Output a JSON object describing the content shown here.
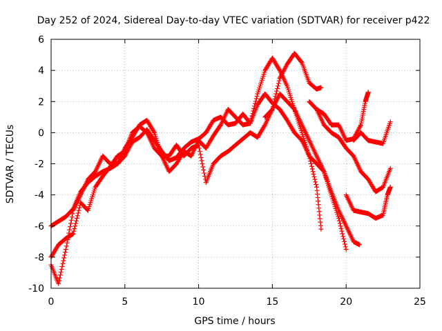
{
  "chart_data": {
    "type": "scatter",
    "title": "Day 252 of 2024, Sidereal Day-to-day VTEC variation (SDTVAR) for receiver p422",
    "xlabel": "GPS time / hours",
    "ylabel": "SDTVAR / TECUs",
    "xlim": [
      0,
      25
    ],
    "ylim": [
      -10,
      6
    ],
    "xticks": [
      0,
      5,
      10,
      15,
      20,
      25
    ],
    "yticks": [
      -10,
      -8,
      -6,
      -4,
      -2,
      0,
      2,
      4,
      6
    ],
    "grid": true,
    "marker": "+",
    "color": "#ff0000",
    "series": [
      {
        "points": [
          [
            0,
            -6.0
          ],
          [
            0.5,
            -5.7
          ],
          [
            1.0,
            -5.4
          ],
          [
            1.5,
            -4.9
          ],
          [
            2.0,
            -3.8
          ],
          [
            2.5,
            -3.2
          ],
          [
            3.0,
            -2.8
          ],
          [
            3.5,
            -2.5
          ],
          [
            4.0,
            -2.3
          ],
          [
            4.5,
            -2.0
          ],
          [
            5.0,
            -1.5
          ],
          [
            5.5,
            -0.6
          ],
          [
            6.0,
            -0.3
          ],
          [
            6.5,
            0.2
          ],
          [
            7.0,
            -0.5
          ],
          [
            7.5,
            -1.2
          ],
          [
            8.0,
            -1.8
          ],
          [
            8.5,
            -1.6
          ],
          [
            9.0,
            -1.0
          ],
          [
            9.5,
            -0.6
          ],
          [
            10.0,
            -0.4
          ],
          [
            10.5,
            0.0
          ],
          [
            11.0,
            0.8
          ],
          [
            11.5,
            1.0
          ],
          [
            12.0,
            0.5
          ],
          [
            12.5,
            0.6
          ],
          [
            13.0,
            1.2
          ],
          [
            13.5,
            0.6
          ],
          [
            14.0,
            1.8
          ],
          [
            14.5,
            2.5
          ],
          [
            15.0,
            1.9
          ],
          [
            15.5,
            1.5
          ],
          [
            16.0,
            0.8
          ],
          [
            16.5,
            0.0
          ],
          [
            17.0,
            -0.5
          ],
          [
            17.5,
            -1.5
          ],
          [
            18.0,
            -3.5
          ],
          [
            18.3,
            -6.2
          ]
        ]
      },
      {
        "points": [
          [
            0,
            -8.0
          ],
          [
            0.5,
            -7.2
          ],
          [
            1.0,
            -6.8
          ],
          [
            1.5,
            -6.5
          ],
          [
            2.0,
            -4.5
          ],
          [
            2.5,
            -5.0
          ],
          [
            3.0,
            -3.5
          ],
          [
            3.5,
            -2.8
          ],
          [
            4.0,
            -2.2
          ],
          [
            4.5,
            -1.5
          ],
          [
            5.0,
            -1.2
          ],
          [
            5.5,
            0.0
          ],
          [
            6.0,
            0.4
          ],
          [
            6.5,
            0.0
          ],
          [
            7.0,
            -1.0
          ],
          [
            7.5,
            -1.5
          ],
          [
            8.0,
            -2.5
          ],
          [
            8.5,
            -2.0
          ],
          [
            9.0,
            -1.2
          ],
          [
            9.5,
            -1.5
          ],
          [
            10.0,
            -0.5
          ],
          [
            10.5,
            -1.0
          ],
          [
            11.0,
            -0.2
          ],
          [
            11.5,
            0.5
          ],
          [
            12.0,
            1.5
          ],
          [
            12.5,
            1.0
          ],
          [
            13.0,
            0.5
          ],
          [
            13.5,
            0.6
          ],
          [
            14.0,
            2.5
          ],
          [
            14.5,
            4.0
          ],
          [
            15.0,
            4.8
          ],
          [
            15.5,
            4.0
          ],
          [
            16.0,
            3.0
          ],
          [
            16.5,
            1.5
          ],
          [
            17.0,
            0.0
          ],
          [
            17.5,
            -1.5
          ],
          [
            18.0,
            -2.0
          ],
          [
            18.5,
            -2.5
          ],
          [
            19.0,
            -3.8
          ],
          [
            19.5,
            -5.0
          ],
          [
            20.0,
            -6.0
          ],
          [
            20.5,
            -7.0
          ],
          [
            20.9,
            -7.2
          ]
        ]
      },
      {
        "points": [
          [
            0,
            -8.5
          ],
          [
            0.5,
            -9.7
          ],
          [
            1.0,
            -7.5
          ],
          [
            1.5,
            -5.0
          ],
          [
            2.0,
            -4.0
          ],
          [
            2.5,
            -3.0
          ],
          [
            3.0,
            -2.5
          ],
          [
            3.5,
            -1.5
          ],
          [
            4.0,
            -2.0
          ],
          [
            4.5,
            -2.0
          ],
          [
            5.0,
            -1.0
          ],
          [
            5.5,
            -0.3
          ],
          [
            6.0,
            0.5
          ],
          [
            6.5,
            0.8
          ],
          [
            7.0,
            0.0
          ],
          [
            7.5,
            -1.5
          ],
          [
            8.0,
            -1.5
          ],
          [
            8.5,
            -0.8
          ],
          [
            9.0,
            -1.5
          ],
          [
            9.5,
            -1.0
          ],
          [
            10.0,
            -0.8
          ],
          [
            10.5,
            -3.2
          ],
          [
            11.0,
            -2.0
          ],
          [
            11.5,
            -1.5
          ],
          [
            12.0,
            -1.2
          ],
          [
            12.5,
            -0.8
          ],
          [
            13.0,
            -0.4
          ],
          [
            13.5,
            0.0
          ],
          [
            14.0,
            -0.3
          ],
          [
            14.5,
            0.5
          ],
          [
            15.0,
            1.5
          ],
          [
            15.5,
            3.5
          ],
          [
            16.0,
            4.4
          ],
          [
            16.5,
            5.1
          ],
          [
            17.0,
            4.5
          ],
          [
            17.5,
            3.2
          ],
          [
            18.0,
            2.8
          ],
          [
            18.3,
            2.9
          ]
        ]
      },
      {
        "points": [
          [
            14.5,
            1.0
          ],
          [
            15.0,
            1.5
          ],
          [
            15.5,
            2.5
          ],
          [
            16.0,
            2.0
          ],
          [
            16.5,
            1.5
          ],
          [
            17.0,
            0.5
          ],
          [
            17.5,
            -0.5
          ],
          [
            18.0,
            -1.5
          ],
          [
            18.5,
            -2.5
          ],
          [
            19.0,
            -4.0
          ],
          [
            19.5,
            -5.5
          ],
          [
            20.0,
            -7.5
          ]
        ]
      },
      {
        "points": [
          [
            18.0,
            1.5
          ],
          [
            18.5,
            1.2
          ],
          [
            19.0,
            0.5
          ],
          [
            19.5,
            0.5
          ],
          [
            20.0,
            -0.5
          ],
          [
            20.5,
            -0.4
          ],
          [
            21.0,
            0.5
          ],
          [
            21.3,
            2.0
          ],
          [
            21.5,
            2.6
          ]
        ]
      },
      {
        "points": [
          [
            17.5,
            2.0
          ],
          [
            18.0,
            1.5
          ],
          [
            18.5,
            0.5
          ],
          [
            19.0,
            0.0
          ],
          [
            19.5,
            -0.3
          ],
          [
            20.0,
            -1.0
          ],
          [
            20.5,
            -1.5
          ],
          [
            21.0,
            -2.5
          ],
          [
            21.5,
            -3.0
          ],
          [
            22.0,
            -3.8
          ],
          [
            22.5,
            -3.5
          ],
          [
            23.0,
            -2.3
          ]
        ]
      },
      {
        "points": [
          [
            20.0,
            -4.0
          ],
          [
            20.5,
            -5.0
          ],
          [
            21.0,
            -5.1
          ],
          [
            21.5,
            -5.2
          ],
          [
            22.0,
            -5.5
          ],
          [
            22.5,
            -5.3
          ],
          [
            22.8,
            -4.0
          ],
          [
            23.0,
            -3.5
          ]
        ]
      },
      {
        "points": [
          [
            20.5,
            -0.5
          ],
          [
            21.0,
            0.0
          ],
          [
            21.5,
            -0.5
          ],
          [
            22.0,
            -0.6
          ],
          [
            22.5,
            -0.7
          ],
          [
            23.0,
            0.7
          ]
        ]
      }
    ]
  }
}
